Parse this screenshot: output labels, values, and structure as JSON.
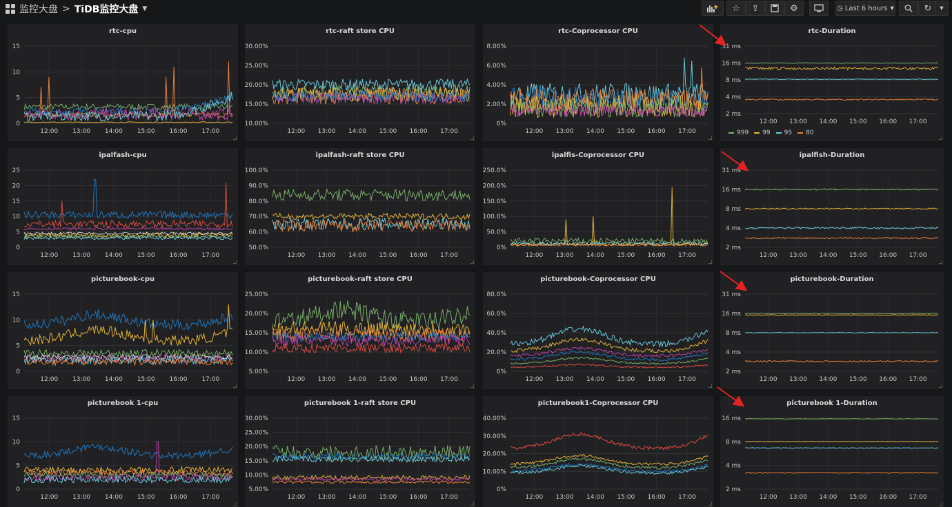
{
  "breadcrumb": {
    "parent": "监控大盘",
    "separator": ">",
    "current": "TiDB监控大盘"
  },
  "toolbar": {
    "time_range": "Last 6 hours"
  },
  "colors": {
    "green": "#7eb26d",
    "yellow": "#eab839",
    "cyan": "#6ed0e0",
    "orange": "#ef843c",
    "red": "#e24d42",
    "blue": "#1f78c1",
    "purple": "#ba43a9",
    "violet": "#705da0",
    "lime": "#508642"
  },
  "x_ticks": [
    "12:00",
    "13:00",
    "14:00",
    "15:00",
    "16:00",
    "17:00"
  ],
  "panels": [
    {
      "id": "rtc-cpu",
      "title": "rtc-cpu",
      "kind": "cpu",
      "y_ticks": [
        "15",
        "10",
        "5",
        "0"
      ],
      "ylim": [
        0,
        15
      ],
      "series": [
        {
          "color": "#7eb26d",
          "base": 3.2,
          "amp": 0.6
        },
        {
          "color": "#1f78c1",
          "base": 2.2,
          "amp": 0.8,
          "trend": 3
        },
        {
          "color": "#ef843c",
          "base": 1.6,
          "amp": 0.5,
          "spikes": [
            [
              0.08,
              7
            ],
            [
              0.12,
              9
            ],
            [
              0.68,
              9
            ],
            [
              0.72,
              11
            ],
            [
              0.98,
              12
            ]
          ]
        },
        {
          "color": "#ba43a9",
          "base": 1.8,
          "amp": 1.2
        },
        {
          "color": "#6ed0e0",
          "base": 1.4,
          "amp": 1.0,
          "trend": 4
        },
        {
          "color": "#eab839",
          "base": 0.2,
          "amp": 0.1
        }
      ]
    },
    {
      "id": "rtc-raft",
      "title": "rtc-raft store CPU",
      "kind": "pct",
      "y_ticks": [
        "30.00%",
        "25.00%",
        "20.00%",
        "15.00%",
        "10.00%"
      ],
      "ylim": [
        10,
        30
      ],
      "series": [
        {
          "color": "#6ed0e0",
          "base": 20,
          "amp": 1.5
        },
        {
          "color": "#7eb26d",
          "base": 18,
          "amp": 2
        },
        {
          "color": "#ef843c",
          "base": 17,
          "amp": 2
        },
        {
          "color": "#eab839",
          "base": 17.5,
          "amp": 1.8
        },
        {
          "color": "#ba43a9",
          "base": 16.5,
          "amp": 1.5
        },
        {
          "color": "#1f78c1",
          "base": 17,
          "amp": 1.5
        }
      ]
    },
    {
      "id": "rtc-cop",
      "title": "rtc-Coprocessor CPU",
      "kind": "pct",
      "y_ticks": [
        "8.00%",
        "6.00%",
        "4.00%",
        "2.00%",
        "0%"
      ],
      "ylim": [
        0,
        8
      ],
      "series": [
        {
          "color": "#6ed0e0",
          "base": 3,
          "amp": 1.2,
          "spikes": [
            [
              0.88,
              6.8
            ],
            [
              0.92,
              6.5
            ]
          ]
        },
        {
          "color": "#1f78c1",
          "base": 2.6,
          "amp": 1.2
        },
        {
          "color": "#ef843c",
          "base": 2.2,
          "amp": 1.4,
          "spikes": [
            [
              0.97,
              5.8
            ]
          ]
        },
        {
          "color": "#eab839",
          "base": 1.8,
          "amp": 1.2
        },
        {
          "color": "#7eb26d",
          "base": 1.6,
          "amp": 1
        },
        {
          "color": "#ba43a9",
          "base": 1.3,
          "amp": 0.6
        }
      ]
    },
    {
      "id": "rtc-dur",
      "title": "rtc-Duration",
      "kind": "dur",
      "y_ticks": [
        "31 ms",
        "16 ms",
        "8 ms",
        "4 ms",
        "2 ms"
      ],
      "ylim": [
        2,
        31
      ],
      "legend": [
        "999",
        "99",
        "95",
        "80"
      ],
      "series": [
        {
          "color": "#7eb26d",
          "level": 0.25,
          "amp": 0.005
        },
        {
          "color": "#eab839",
          "level": 0.33,
          "amp": 0.02
        },
        {
          "color": "#6ed0e0",
          "level": 0.49,
          "amp": 0.005
        },
        {
          "color": "#ef843c",
          "level": 0.79,
          "amp": 0.01
        }
      ]
    },
    {
      "id": "ipal-cpu",
      "title": "ipalfash-cpu",
      "kind": "cpu",
      "y_ticks": [
        "25",
        "20",
        "15",
        "10",
        "5",
        "0"
      ],
      "ylim": [
        0,
        25
      ],
      "series": [
        {
          "color": "#1f78c1",
          "base": 10.5,
          "amp": 1.2,
          "spikes": [
            [
              0.34,
              22
            ]
          ]
        },
        {
          "color": "#e24d42",
          "base": 7.5,
          "amp": 1.2,
          "spikes": [
            [
              0.18,
              15
            ],
            [
              0.97,
              21
            ]
          ]
        },
        {
          "color": "#ba43a9",
          "base": 6,
          "amp": 0.4
        },
        {
          "color": "#eab839",
          "base": 4,
          "amp": 0.8
        },
        {
          "color": "#7eb26d",
          "base": 3.5,
          "amp": 0.6
        },
        {
          "color": "#6ed0e0",
          "base": 3,
          "amp": 0.5
        },
        {
          "color": "#c8c8c8",
          "base": 4.5,
          "amp": 0.4
        }
      ]
    },
    {
      "id": "ipal-raft",
      "title": "ipalfash-raft store CPU",
      "kind": "pct",
      "y_ticks": [
        "100.0%",
        "90.0%",
        "80.0%",
        "70.0%",
        "60.0%",
        "50.0%"
      ],
      "ylim": [
        50,
        100
      ],
      "series": [
        {
          "color": "#7eb26d",
          "base": 84,
          "amp": 4
        },
        {
          "color": "#eab839",
          "base": 70,
          "amp": 2
        },
        {
          "color": "#6ed0e0",
          "base": 65,
          "amp": 4
        },
        {
          "color": "#ef843c",
          "base": 64,
          "amp": 4
        }
      ]
    },
    {
      "id": "ipal-cop",
      "title": "ipalfis-Coprocessor CPU",
      "kind": "pct",
      "y_ticks": [
        "250.0%",
        "200.0%",
        "150.0%",
        "100.0%",
        "50.0%",
        "0%"
      ],
      "ylim": [
        0,
        250
      ],
      "series": [
        {
          "color": "#7eb26d",
          "base": 20,
          "amp": 10
        },
        {
          "color": "#eab839",
          "base": 10,
          "amp": 5,
          "spikes": [
            [
              0.28,
              90
            ],
            [
              0.42,
              100
            ],
            [
              0.82,
              195
            ]
          ]
        },
        {
          "color": "#6ed0e0",
          "base": 12,
          "amp": 6
        },
        {
          "color": "#ef843c",
          "base": 8,
          "amp": 4
        }
      ]
    },
    {
      "id": "ipal-dur",
      "title": "ipalfish-Duration",
      "kind": "dur",
      "y_ticks": [
        "31 ms",
        "16 ms",
        "8 ms",
        "4 ms",
        "2 ms"
      ],
      "ylim": [
        2,
        31
      ],
      "series": [
        {
          "color": "#7eb26d",
          "level": 0.25,
          "amp": 0.01
        },
        {
          "color": "#eab839",
          "level": 0.5,
          "amp": 0.008
        },
        {
          "color": "#6ed0e0",
          "level": 0.75,
          "amp": 0.012
        },
        {
          "color": "#ef843c",
          "level": 0.88,
          "amp": 0.01
        }
      ]
    },
    {
      "id": "pb-cpu",
      "title": "picturebook-cpu",
      "kind": "cpu",
      "y_ticks": [
        "15",
        "10",
        "5",
        "0"
      ],
      "ylim": [
        0,
        15
      ],
      "series": [
        {
          "color": "#1f78c1",
          "base": 9,
          "amp": 1,
          "wave": 2
        },
        {
          "color": "#eab839",
          "base": 6,
          "amp": 1,
          "wave": 2,
          "spikes": [
            [
              0.58,
              10
            ],
            [
              0.62,
              10
            ],
            [
              0.98,
              13
            ]
          ]
        },
        {
          "color": "#7eb26d",
          "base": 3.5,
          "amp": 0.8
        },
        {
          "color": "#ba43a9",
          "base": 2.5,
          "amp": 0.7
        },
        {
          "color": "#6ed0e0",
          "base": 2.2,
          "amp": 0.8
        },
        {
          "color": "#ef843c",
          "base": 1.8,
          "amp": 0.6
        },
        {
          "color": "#c8c8c8",
          "base": 2.8,
          "amp": 0.5
        }
      ]
    },
    {
      "id": "pb-raft",
      "title": "picturebook-raft store CPU",
      "kind": "pct",
      "y_ticks": [
        "25.00%",
        "20.00%",
        "15.00%",
        "10.00%",
        "5.00%"
      ],
      "ylim": [
        5,
        25
      ],
      "series": [
        {
          "color": "#7eb26d",
          "base": 18,
          "amp": 2.5,
          "wave": 3
        },
        {
          "color": "#eab839",
          "base": 16,
          "amp": 2
        },
        {
          "color": "#ef843c",
          "base": 14.5,
          "amp": 1.8
        },
        {
          "color": "#1f78c1",
          "base": 14,
          "amp": 1.2
        },
        {
          "color": "#ba43a9",
          "base": 13,
          "amp": 1.5
        },
        {
          "color": "#e24d42",
          "base": 11,
          "amp": 1.2
        }
      ]
    },
    {
      "id": "pb-cop",
      "title": "picturebook-Coprocessor CPU",
      "kind": "pct",
      "y_ticks": [
        "80.0%",
        "60.0%",
        "40.0%",
        "20.0%",
        "0%"
      ],
      "ylim": [
        0,
        80
      ],
      "series": [
        {
          "color": "#6ed0e0",
          "base": 28,
          "amp": 3,
          "wave": 16
        },
        {
          "color": "#eab839",
          "base": 21,
          "amp": 2,
          "wave": 12
        },
        {
          "color": "#ba43a9",
          "base": 16,
          "amp": 1.5,
          "wave": 8
        },
        {
          "color": "#1f78c1",
          "base": 12,
          "amp": 1.5,
          "wave": 8
        },
        {
          "color": "#7eb26d",
          "base": 8,
          "amp": 1,
          "wave": 6
        },
        {
          "color": "#e24d42",
          "base": 4,
          "amp": 0.8,
          "wave": 3
        }
      ]
    },
    {
      "id": "pb-dur",
      "title": "picturebook-Duration",
      "kind": "dur",
      "y_ticks": [
        "31 ms",
        "16 ms",
        "8 ms",
        "4 ms",
        "2 ms"
      ],
      "ylim": [
        2,
        31
      ],
      "series": [
        {
          "color": "#7eb26d",
          "level": 0.25,
          "amp": 0.006
        },
        {
          "color": "#eab839",
          "level": 0.27,
          "amp": 0.004
        },
        {
          "color": "#6ed0e0",
          "level": 0.5,
          "amp": 0.005
        },
        {
          "color": "#ef843c",
          "level": 0.87,
          "amp": 0.01
        }
      ]
    },
    {
      "id": "pb1-cpu",
      "title": "picturebook 1-cpu",
      "kind": "cpu",
      "y_ticks": [
        "15",
        "10",
        "5",
        "0"
      ],
      "ylim": [
        0,
        15
      ],
      "series": [
        {
          "color": "#1f78c1",
          "base": 7,
          "amp": 0.8,
          "wave": 2
        },
        {
          "color": "#eab839",
          "base": 4,
          "amp": 0.7
        },
        {
          "color": "#ef843c",
          "base": 3.5,
          "amp": 0.6
        },
        {
          "color": "#7eb26d",
          "base": 3,
          "amp": 0.6
        },
        {
          "color": "#ba43a9",
          "base": 2.5,
          "amp": 0.8,
          "spikes": [
            [
              0.64,
              10
            ]
          ]
        },
        {
          "color": "#6ed0e0",
          "base": 2,
          "amp": 0.7
        }
      ]
    },
    {
      "id": "pb1-raft",
      "title": "picturebook 1-raft store CPU",
      "kind": "pct",
      "y_ticks": [
        "30.00%",
        "25.00%",
        "20.00%",
        "15.00%",
        "10.00%",
        "5.00%"
      ],
      "ylim": [
        5,
        30
      ],
      "series": [
        {
          "color": "#7eb26d",
          "base": 18,
          "amp": 2.5
        },
        {
          "color": "#1f78c1",
          "base": 16.5,
          "amp": 1
        },
        {
          "color": "#6ed0e0",
          "base": 15.5,
          "amp": 1
        },
        {
          "color": "#eab839",
          "base": 9,
          "amp": 0.8
        },
        {
          "color": "#ba43a9",
          "base": 8.5,
          "amp": 0.6
        },
        {
          "color": "#ef843c",
          "base": 7.5,
          "amp": 0.5
        }
      ]
    },
    {
      "id": "pb1-cop",
      "title": "picturebook1-Coprocessor CPU",
      "kind": "pct",
      "y_ticks": [
        "40.00%",
        "30.00%",
        "20.00%",
        "10.00%",
        "0%"
      ],
      "ylim": [
        0,
        40
      ],
      "series": [
        {
          "color": "#e24d42",
          "base": 23,
          "amp": 1,
          "wave": 8
        },
        {
          "color": "#eab839",
          "base": 14,
          "amp": 0.8,
          "wave": 5
        },
        {
          "color": "#7eb26d",
          "base": 12,
          "amp": 0.8,
          "wave": 5
        },
        {
          "color": "#1f78c1",
          "base": 10,
          "amp": 0.8,
          "wave": 4
        },
        {
          "color": "#6ed0e0",
          "base": 9,
          "amp": 0.8,
          "wave": 4
        }
      ]
    },
    {
      "id": "pb1-dur",
      "title": "picturebook 1-Duration",
      "kind": "dur",
      "y_ticks": [
        "16 ms",
        "8 ms",
        "4 ms",
        "2 ms"
      ],
      "ylim": [
        2,
        16
      ],
      "series": [
        {
          "color": "#7eb26d",
          "level": 0.01,
          "amp": 0.004
        },
        {
          "color": "#eab839",
          "level": 0.33,
          "amp": 0.003
        },
        {
          "color": "#6ed0e0",
          "level": 0.42,
          "amp": 0.004
        },
        {
          "color": "#ef843c",
          "level": 0.77,
          "amp": 0.008
        }
      ]
    }
  ]
}
